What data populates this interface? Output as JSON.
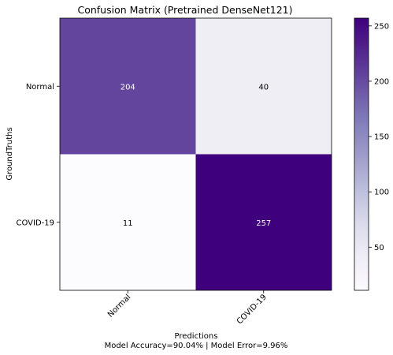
{
  "chart_data": {
    "type": "heatmap",
    "title": "Confusion Matrix (Pretrained DenseNet121)",
    "xlabel": "Predictions",
    "xlabel_note": "Model Accuracy=90.04% | Model Error=9.96%",
    "ylabel": "GroundTruths",
    "x_categories": [
      "Normal",
      "COVID-19"
    ],
    "y_categories": [
      "Normal",
      "COVID-19"
    ],
    "values": [
      [
        204,
        40
      ],
      [
        11,
        257
      ]
    ],
    "colorscale": "Purples",
    "vmin": 11,
    "vmax": 257,
    "colorbar_ticks": [
      50,
      100,
      150,
      200,
      250
    ],
    "colors": {
      "low": "#fcfbfd",
      "high": "#3f007d",
      "text_on_dark": "#ffffff",
      "text_on_light": "#000000"
    }
  }
}
